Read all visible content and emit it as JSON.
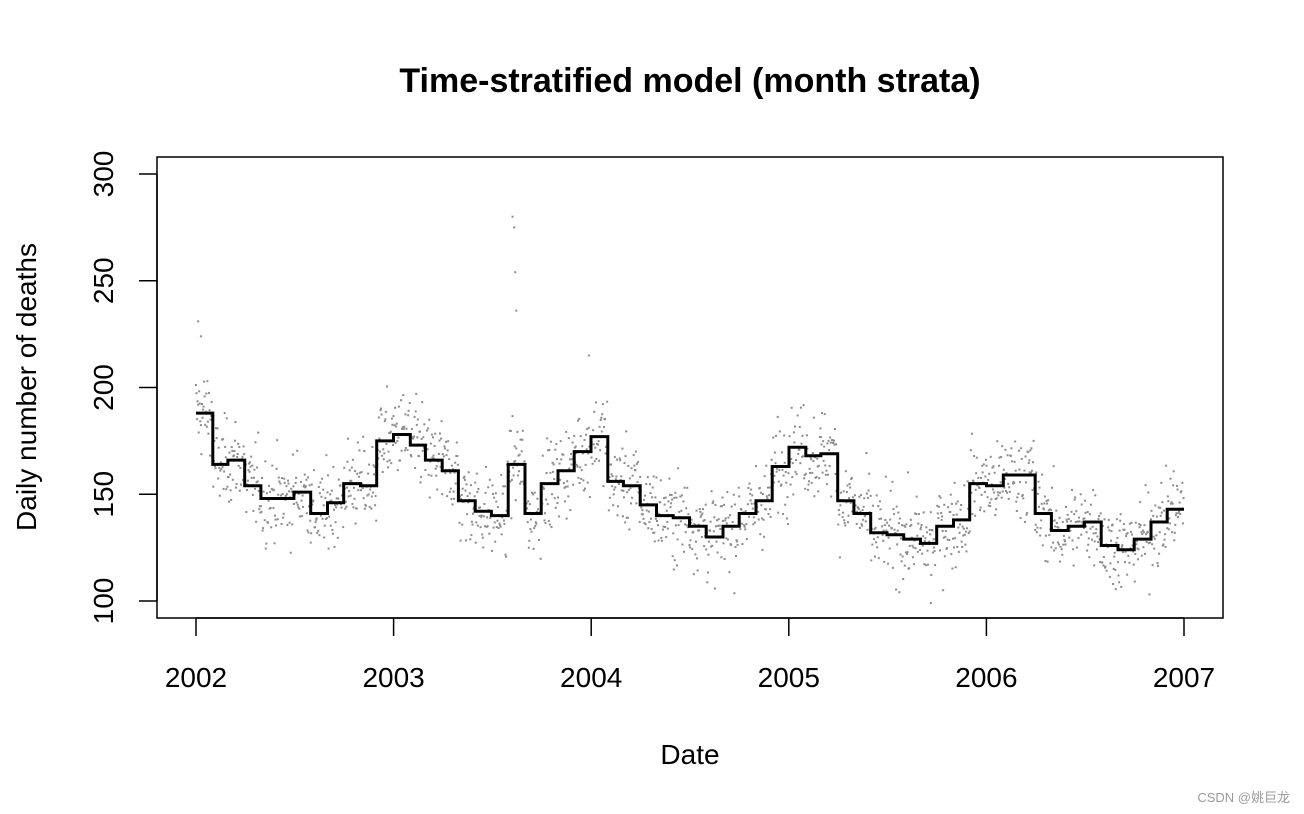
{
  "chart_data": {
    "type": "scatter",
    "title": "Time-stratified model (month strata)",
    "xlabel": "Date",
    "ylabel": "Daily number of deaths",
    "xlim": [
      "2002-01-01",
      "2007-01-01"
    ],
    "ylim": [
      100,
      300
    ],
    "x_ticks": [
      "2002",
      "2003",
      "2004",
      "2005",
      "2006",
      "2007"
    ],
    "y_ticks": [
      "100",
      "150",
      "200",
      "250",
      "300"
    ],
    "grid": false,
    "legend": "none",
    "colors": {
      "points": "#8c8c8c",
      "step_line": "#000000"
    },
    "series": [
      {
        "kind": "points",
        "x_start": "2002-01-01",
        "x_end": "2006-12-31",
        "value_range": [
          99,
          280
        ],
        "notable_values": [
          {
            "x": "2002-01-05",
            "y": 231
          },
          {
            "x": "2002-01-10",
            "y": 224
          },
          {
            "x": "2003-08-09",
            "y": 280
          },
          {
            "x": "2003-08-12",
            "y": 275
          },
          {
            "x": "2003-08-14",
            "y": 254
          },
          {
            "x": "2003-08-16",
            "y": 236
          },
          {
            "x": "2003-12-28",
            "y": 215
          },
          {
            "x": "2005-09-20",
            "y": 99
          }
        ]
      },
      {
        "kind": "step",
        "months": [
          "2002-01",
          "2002-02",
          "2002-03",
          "2002-04",
          "2002-05",
          "2002-06",
          "2002-07",
          "2002-08",
          "2002-09",
          "2002-10",
          "2002-11",
          "2002-12",
          "2003-01",
          "2003-02",
          "2003-03",
          "2003-04",
          "2003-05",
          "2003-06",
          "2003-07",
          "2003-08",
          "2003-09",
          "2003-10",
          "2003-11",
          "2003-12",
          "2004-01",
          "2004-02",
          "2004-03",
          "2004-04",
          "2004-05",
          "2004-06",
          "2004-07",
          "2004-08",
          "2004-09",
          "2004-10",
          "2004-11",
          "2004-12",
          "2005-01",
          "2005-02",
          "2005-03",
          "2005-04",
          "2005-05",
          "2005-06",
          "2005-07",
          "2005-08",
          "2005-09",
          "2005-10",
          "2005-11",
          "2005-12",
          "2006-01",
          "2006-02",
          "2006-03",
          "2006-04",
          "2006-05",
          "2006-06",
          "2006-07",
          "2006-08",
          "2006-09",
          "2006-10",
          "2006-11",
          "2006-12"
        ],
        "values": [
          188,
          164,
          166,
          154,
          148,
          148,
          151,
          141,
          146,
          155,
          154,
          175,
          178,
          173,
          166,
          161,
          147,
          142,
          140,
          164,
          141,
          155,
          161,
          170,
          177,
          156,
          154,
          145,
          140,
          139,
          135,
          130,
          135,
          141,
          147,
          163,
          172,
          168,
          169,
          147,
          141,
          132,
          131,
          129,
          127,
          135,
          138,
          155,
          154,
          159,
          159,
          141,
          133,
          135,
          137,
          126,
          124,
          129,
          137,
          143
        ]
      }
    ]
  },
  "watermark": "CSDN @姚巨龙"
}
